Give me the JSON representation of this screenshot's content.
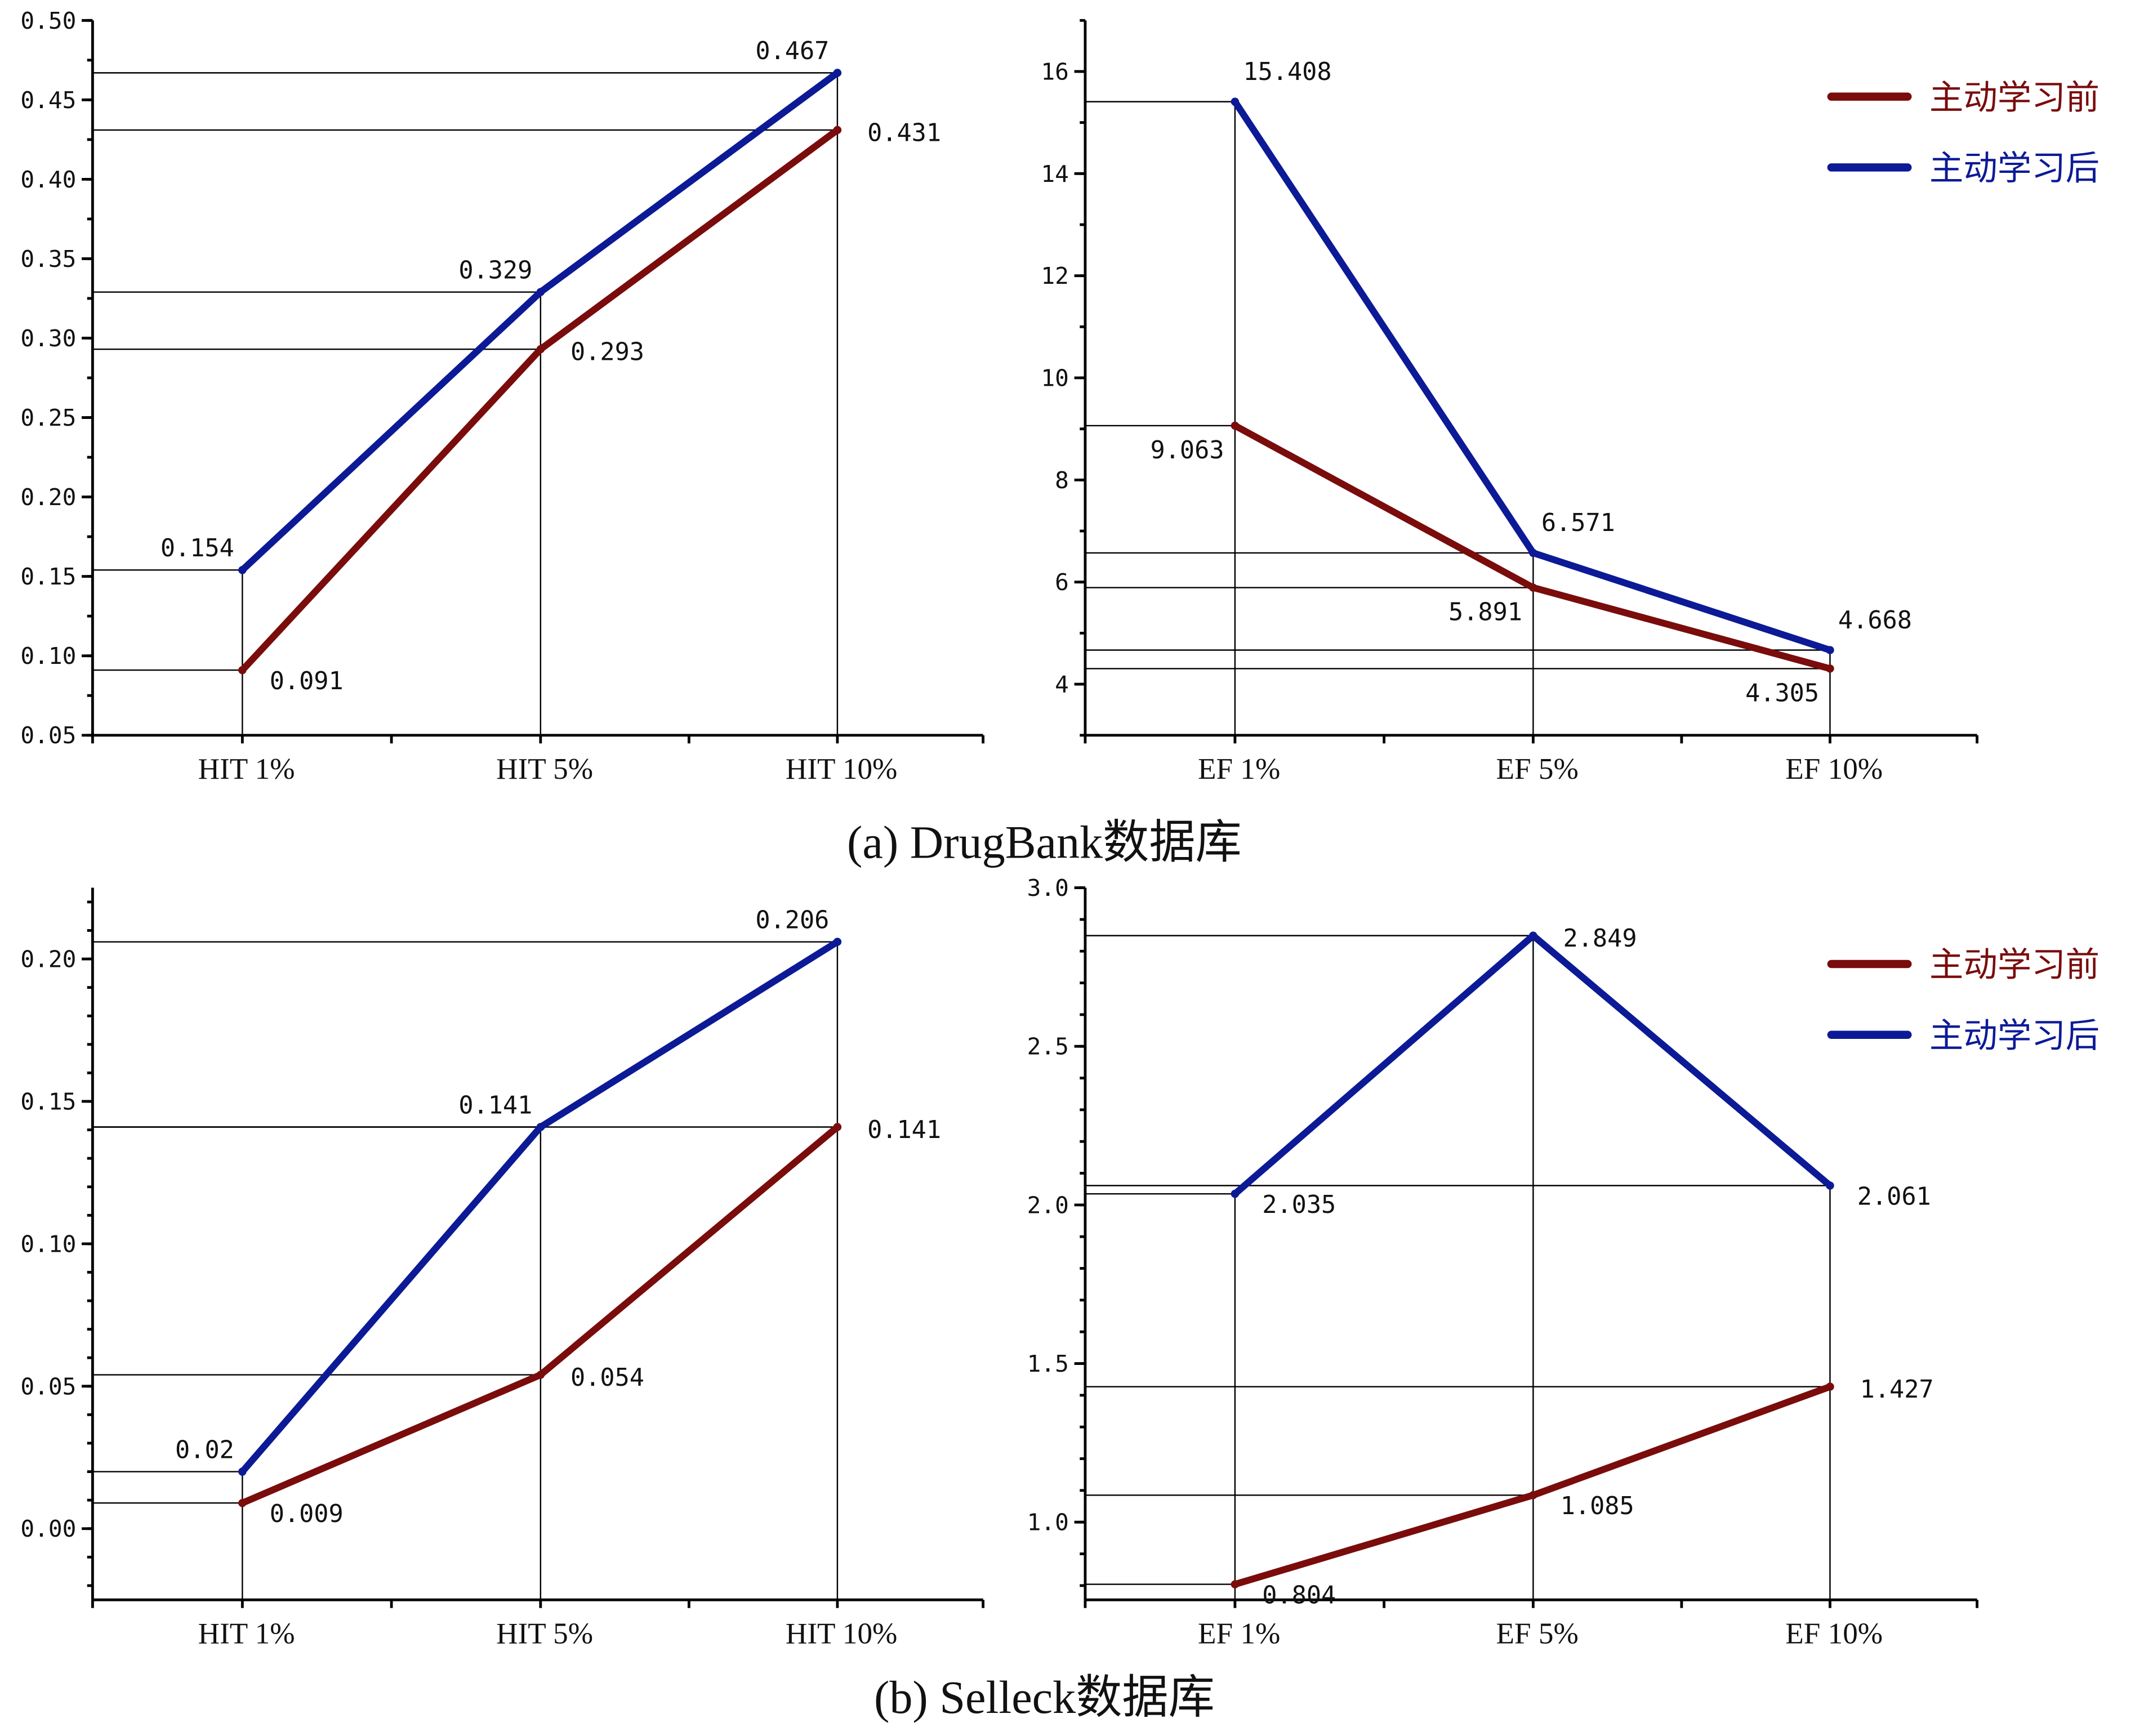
{
  "colors": {
    "before": "#7a0c0c",
    "after": "#0c1a96"
  },
  "legend": {
    "before_label": "主动学习前",
    "after_label": "主动学习后"
  },
  "captions": {
    "a": "(a) DrugBank数据库",
    "b": "(b) Selleck数据库"
  },
  "chart_data": [
    {
      "id": "a-hit",
      "type": "line",
      "title": "",
      "xlabel": "",
      "ylabel": "",
      "categories": [
        "HIT 1%",
        "HIT 5%",
        "HIT 10%"
      ],
      "ylim": [
        0.05,
        0.5
      ],
      "yticks": [
        0.05,
        0.1,
        0.15,
        0.2,
        0.25,
        0.3,
        0.35,
        0.4,
        0.45,
        0.5
      ],
      "ytick_labels": [
        "0.05",
        "0.10",
        "0.15",
        "0.20",
        "0.25",
        "0.30",
        "0.35",
        "0.40",
        "0.45",
        "0.50"
      ],
      "minor_step": 0.025,
      "grid": false,
      "series": [
        {
          "name": "主动学习前",
          "key": "before",
          "values": [
            0.091,
            0.293,
            0.431
          ],
          "labels": [
            "0.091",
            "0.293",
            "0.431"
          ],
          "label_pos": [
            "below-right",
            "right",
            "right"
          ]
        },
        {
          "name": "主动学习后",
          "key": "after",
          "values": [
            0.154,
            0.329,
            0.467
          ],
          "labels": [
            "0.154",
            "0.329",
            "0.467"
          ],
          "label_pos": [
            "above-left",
            "above-left",
            "above-left"
          ]
        }
      ],
      "legend": false
    },
    {
      "id": "a-ef",
      "type": "line",
      "title": "",
      "xlabel": "",
      "ylabel": "",
      "categories": [
        "EF 1%",
        "EF 5%",
        "EF 10%"
      ],
      "ylim": [
        3,
        17
      ],
      "yticks": [
        4,
        6,
        8,
        10,
        12,
        14,
        16
      ],
      "ytick_labels": [
        "4",
        "6",
        "8",
        "10",
        "12",
        "14",
        "16"
      ],
      "minor_step": 1,
      "grid": false,
      "series": [
        {
          "name": "主动学习前",
          "key": "before",
          "values": [
            9.063,
            5.891,
            4.305
          ],
          "labels": [
            "9.063",
            "5.891",
            "4.305"
          ],
          "label_pos": [
            "below-left",
            "below-left",
            "below-left"
          ]
        },
        {
          "name": "主动学习后",
          "key": "after",
          "values": [
            15.408,
            6.571,
            4.668
          ],
          "labels": [
            "15.408",
            "6.571",
            "4.668"
          ],
          "label_pos": [
            "above-right",
            "above-right",
            "above-right"
          ]
        }
      ],
      "legend": "top-right"
    },
    {
      "id": "b-hit",
      "type": "line",
      "title": "",
      "xlabel": "",
      "ylabel": "",
      "categories": [
        "HIT 1%",
        "HIT 5%",
        "HIT 10%"
      ],
      "ylim": [
        -0.025,
        0.225
      ],
      "yticks": [
        0.0,
        0.05,
        0.1,
        0.15,
        0.2
      ],
      "ytick_labels": [
        "0.00",
        "0.05",
        "0.10",
        "0.15",
        "0.20"
      ],
      "minor_step": 0.01,
      "grid": false,
      "series": [
        {
          "name": "主动学习前",
          "key": "before",
          "values": [
            0.009,
            0.054,
            0.141
          ],
          "labels": [
            "0.009",
            "0.054",
            "0.141"
          ],
          "label_pos": [
            "below-right",
            "right",
            "right"
          ]
        },
        {
          "name": "主动学习后",
          "key": "after",
          "values": [
            0.02,
            0.141,
            0.206
          ],
          "labels": [
            "0.02",
            "0.141",
            "0.206"
          ],
          "label_pos": [
            "above-left",
            "above-left",
            "above-left"
          ]
        }
      ],
      "legend": false
    },
    {
      "id": "b-ef",
      "type": "line",
      "title": "",
      "xlabel": "",
      "ylabel": "",
      "categories": [
        "EF 1%",
        "EF 5%",
        "EF 10%"
      ],
      "ylim": [
        0.755,
        3.0
      ],
      "yticks": [
        1.0,
        1.5,
        2.0,
        2.5,
        3.0
      ],
      "ytick_labels": [
        "1.0",
        "1.5",
        "2.0",
        "2.5",
        "3.0"
      ],
      "minor_step": 0.1,
      "grid": false,
      "series": [
        {
          "name": "主动学习前",
          "key": "before",
          "values": [
            0.804,
            1.085,
            1.427
          ],
          "labels": [
            "0.804",
            "1.085",
            "1.427"
          ],
          "label_pos": [
            "below-right",
            "below-right",
            "right"
          ]
        },
        {
          "name": "主动学习后",
          "key": "after",
          "values": [
            2.035,
            2.849,
            2.061
          ],
          "labels": [
            "2.035",
            "2.849",
            "2.061"
          ],
          "label_pos": [
            "below-right",
            "right",
            "below-right"
          ]
        }
      ],
      "legend": "top-right"
    }
  ]
}
